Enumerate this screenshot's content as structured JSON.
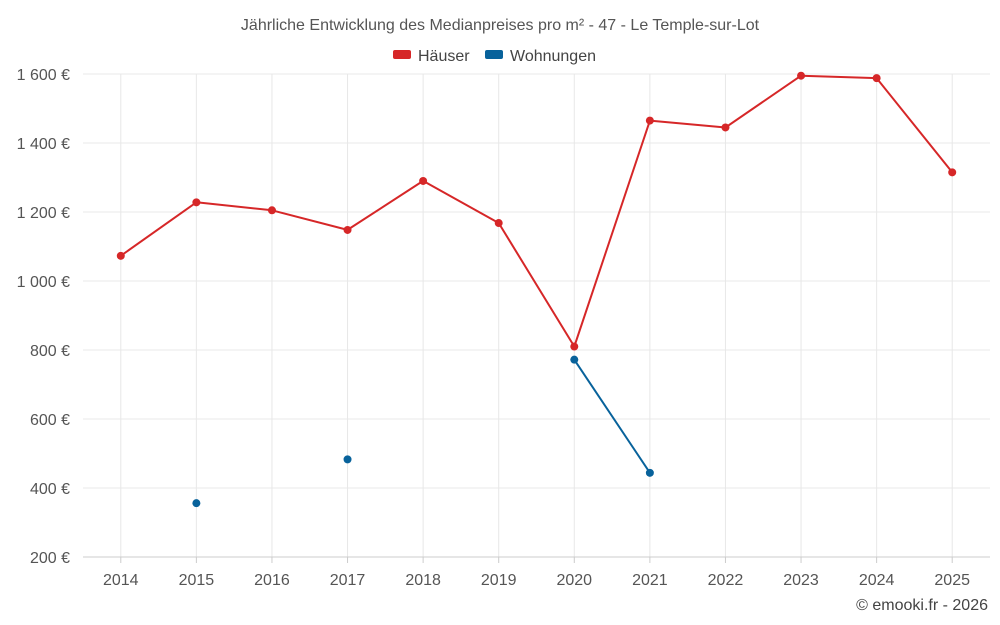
{
  "chart_data": {
    "type": "line",
    "title": "Jährliche Entwicklung des Medianpreises pro m² - 47 - Le Temple-sur-Lot",
    "x": [
      "2014",
      "2015",
      "2016",
      "2017",
      "2018",
      "2019",
      "2020",
      "2021",
      "2022",
      "2023",
      "2024",
      "2025"
    ],
    "y_ticks": [
      200,
      400,
      600,
      800,
      1000,
      1200,
      1400,
      1600
    ],
    "y_tick_labels": [
      "200 €",
      "400 €",
      "600 €",
      "800 €",
      "1 000 €",
      "1 200 €",
      "1 400 €",
      "1 600 €"
    ],
    "ylim": [
      200,
      1600
    ],
    "grid": true,
    "legend_position": "top-center",
    "series": [
      {
        "name": "Häuser",
        "color": "#d62728",
        "values": [
          1073,
          1228,
          1205,
          1148,
          1290,
          1168,
          810,
          1465,
          1445,
          1595,
          1588,
          1315
        ]
      },
      {
        "name": "Wohnungen",
        "color": "#08629b",
        "values": [
          null,
          356,
          null,
          483,
          null,
          null,
          772,
          444,
          null,
          null,
          null,
          null
        ]
      }
    ],
    "credit": "© emooki.fr - 2026"
  }
}
